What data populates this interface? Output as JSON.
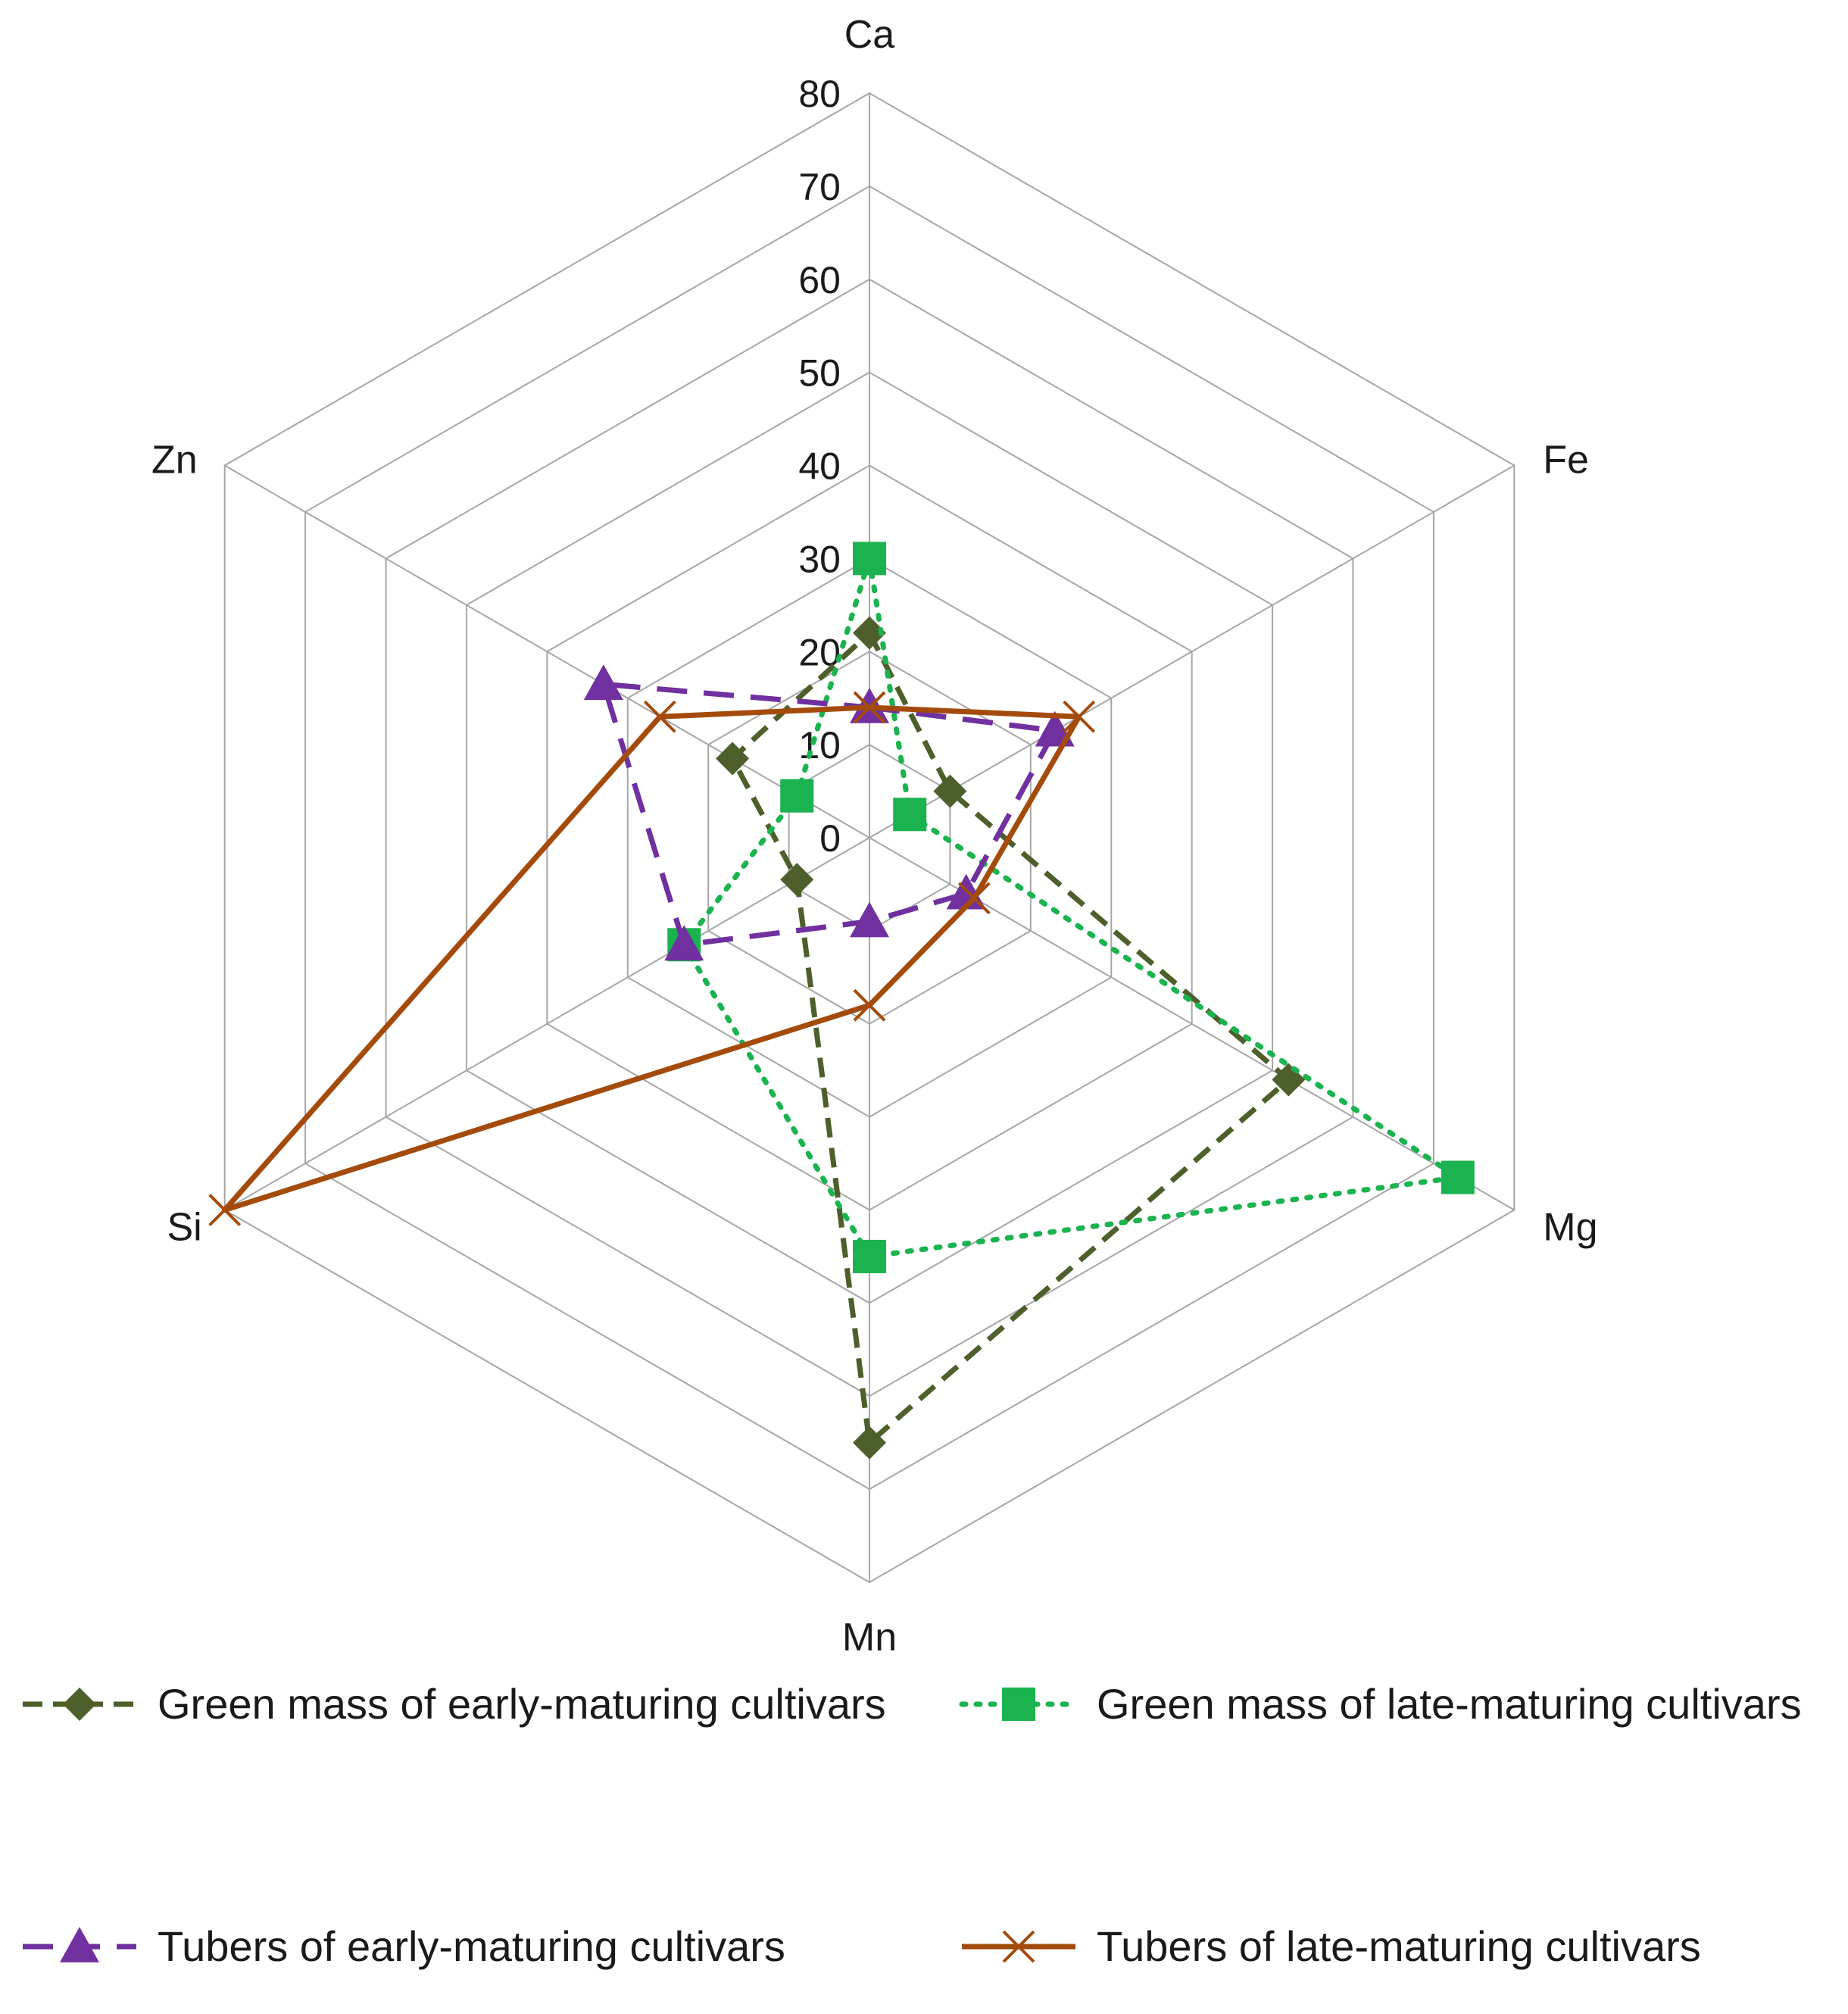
{
  "chart_data": {
    "type": "radar",
    "axes": [
      "Ca",
      "Fe",
      "Mg",
      "Mn",
      "Si",
      "Zn"
    ],
    "rlim": [
      0,
      80
    ],
    "ticks": [
      "0",
      "10",
      "20",
      "30",
      "40",
      "50",
      "60",
      "70",
      "80"
    ],
    "grid": true,
    "legend_position": "bottom",
    "series": [
      {
        "name": "Green mass of early-maturing cultivars",
        "values": [
          22,
          10,
          52,
          65,
          9,
          17
        ],
        "color": "#4d5f2a",
        "line_style": "dashed",
        "marker": "diamond"
      },
      {
        "name": "Green mass of late-maturing cultivars",
        "values": [
          30,
          5,
          73,
          45,
          23,
          9
        ],
        "color": "#1ab34f",
        "line_style": "dotted",
        "marker": "square"
      },
      {
        "name": "Tubers of early-maturing cultivars",
        "values": [
          14,
          23,
          12,
          9,
          23,
          33
        ],
        "color": "#7030a0",
        "line_style": "long-dashed",
        "marker": "triangle"
      },
      {
        "name": "Tubers of late-maturing cultivars",
        "values": [
          14,
          26,
          13,
          18,
          80,
          26
        ],
        "color": "#a44b0b",
        "line_style": "solid",
        "marker": "x"
      }
    ]
  }
}
